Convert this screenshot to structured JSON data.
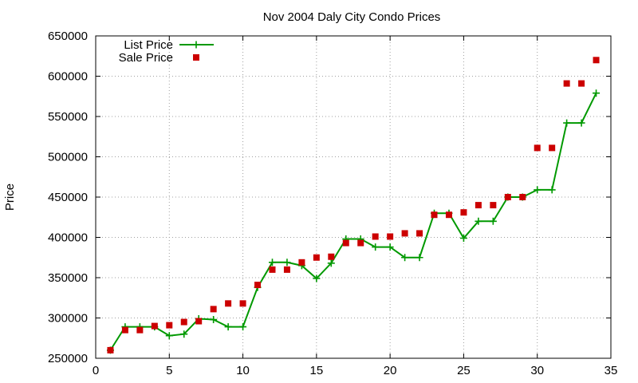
{
  "chart_data": {
    "type": "line",
    "title": "Nov 2004 Daly City Condo Prices",
    "xlabel": "",
    "ylabel": "Price",
    "xlim": [
      0,
      35
    ],
    "ylim": [
      250000,
      650000
    ],
    "x_ticks": [
      0,
      5,
      10,
      15,
      20,
      25,
      30,
      35
    ],
    "y_ticks": [
      250000,
      300000,
      350000,
      400000,
      450000,
      500000,
      550000,
      600000,
      650000
    ],
    "grid": true,
    "legend_position": "top-left",
    "series": [
      {
        "name": "List Price",
        "style": "linespoints",
        "marker": "plus",
        "color": "#009900",
        "x": [
          1,
          2,
          3,
          4,
          5,
          6,
          7,
          8,
          9,
          10,
          11,
          12,
          13,
          14,
          15,
          16,
          17,
          18,
          19,
          20,
          21,
          22,
          23,
          24,
          25,
          26,
          27,
          28,
          29,
          30,
          31,
          32,
          33,
          34
        ],
        "values": [
          260000,
          289000,
          289000,
          289000,
          278000,
          280000,
          299000,
          298000,
          289000,
          289000,
          338000,
          369000,
          369000,
          365000,
          349000,
          368000,
          398000,
          398000,
          388000,
          388000,
          375000,
          375000,
          430000,
          430000,
          399000,
          420000,
          420000,
          450000,
          450000,
          459000,
          459000,
          542000,
          542000,
          579000
        ]
      },
      {
        "name": "Sale Price",
        "style": "points",
        "marker": "square",
        "color": "#cc0000",
        "x": [
          1,
          2,
          3,
          4,
          5,
          6,
          7,
          8,
          9,
          10,
          11,
          12,
          13,
          14,
          15,
          16,
          17,
          18,
          19,
          20,
          21,
          22,
          23,
          24,
          25,
          26,
          27,
          28,
          29,
          30,
          31,
          32,
          33,
          34
        ],
        "values": [
          260000,
          285000,
          285000,
          290000,
          291000,
          295000,
          296000,
          311000,
          318000,
          318000,
          341000,
          360000,
          360000,
          369000,
          375000,
          376000,
          393000,
          393000,
          401000,
          401000,
          405000,
          405000,
          428000,
          428000,
          431000,
          440000,
          440000,
          450000,
          450000,
          511000,
          511000,
          591000,
          591000,
          620000
        ]
      }
    ]
  }
}
